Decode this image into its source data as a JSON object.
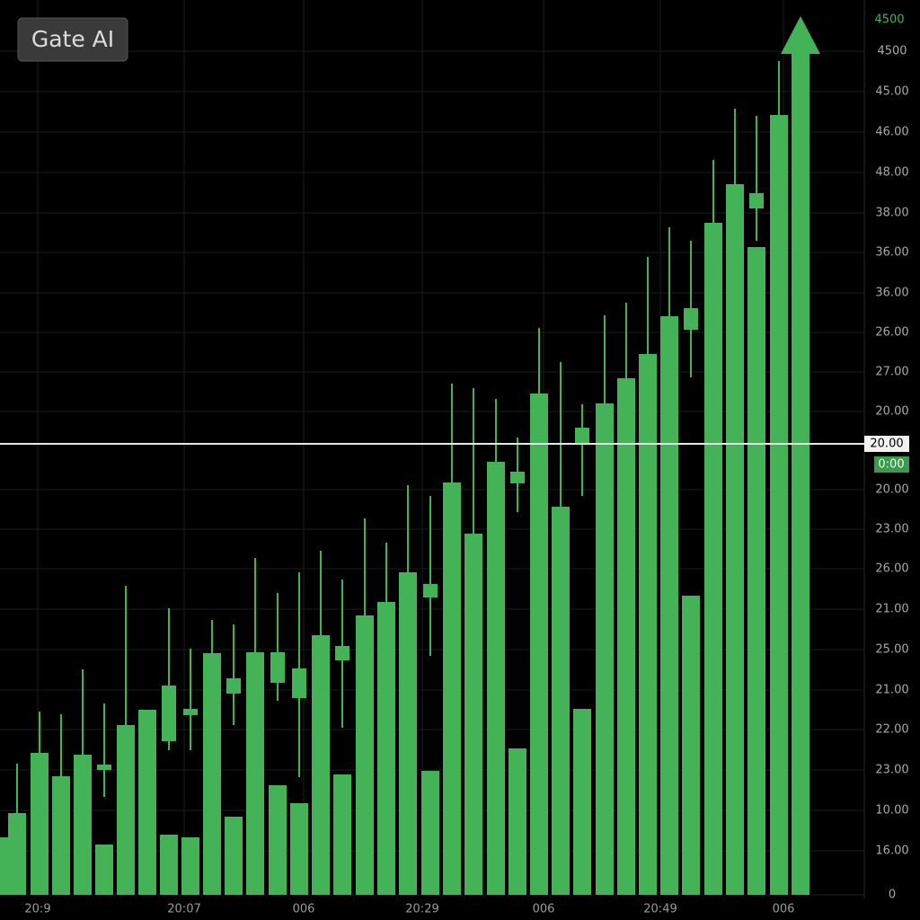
{
  "chart_data": {
    "type": "candlestick",
    "title": "Gate AI",
    "color": "#44b257",
    "xlim": [
      0,
      962
    ],
    "ylim": [
      0,
      996
    ],
    "grid": true,
    "candles": {
      "x": [
        0,
        19,
        44,
        68,
        92,
        116,
        116,
        140,
        164,
        188,
        188,
        212,
        212,
        236,
        260,
        260,
        284,
        309,
        309,
        333,
        333,
        357,
        381,
        381,
        406,
        430,
        454,
        479,
        479,
        503,
        527,
        552,
        576,
        576,
        600,
        624,
        648,
        648,
        673,
        697,
        721,
        745,
        769,
        769,
        794,
        818,
        842,
        842,
        867
      ],
      "open": [
        0,
        0,
        0,
        0,
        0,
        0,
        139,
        0,
        0,
        171,
        0,
        200,
        0,
        0,
        224,
        0,
        0,
        236,
        0,
        219,
        0,
        0,
        261,
        0,
        0,
        0,
        0,
        331,
        0,
        0,
        0,
        0,
        458,
        0,
        0,
        0,
        501,
        0,
        0,
        0,
        0,
        0,
        629,
        0,
        0,
        0,
        764,
        0,
        0
      ],
      "close": [
        64,
        91,
        158,
        132,
        156,
        56,
        145,
        189,
        206,
        233,
        67,
        207,
        64,
        269,
        241,
        87,
        270,
        270,
        122,
        252,
        102,
        289,
        277,
        134,
        311,
        326,
        359,
        346,
        138,
        459,
        402,
        482,
        471,
        163,
        558,
        432,
        520,
        207,
        547,
        575,
        602,
        644,
        653,
        333,
        748,
        791,
        781,
        721,
        868
      ],
      "high": [
        null,
        146,
        204,
        201,
        251,
        null,
        213,
        344,
        null,
        319,
        null,
        274,
        null,
        306,
        301,
        null,
        375,
        336,
        null,
        359,
        null,
        383,
        351,
        null,
        419,
        392,
        456,
        444,
        null,
        569,
        564,
        552,
        509,
        null,
        631,
        593,
        546,
        null,
        645,
        659,
        710,
        743,
        728,
        null,
        818,
        875,
        867,
        null,
        928
      ],
      "low": [
        null,
        null,
        null,
        null,
        null,
        null,
        109,
        null,
        null,
        161,
        null,
        161,
        null,
        null,
        189,
        null,
        null,
        216,
        null,
        131,
        null,
        null,
        186,
        null,
        null,
        null,
        null,
        266,
        null,
        null,
        null,
        null,
        426,
        null,
        null,
        null,
        444,
        null,
        null,
        null,
        null,
        null,
        576,
        null,
        null,
        null,
        728,
        null,
        null
      ]
    },
    "arrow": {
      "x": 891,
      "base": 0,
      "head_base": 936,
      "tip": 978
    },
    "yticks": [
      {
        "value": 939,
        "label": "4500"
      },
      {
        "value": 894,
        "label": "45.00"
      },
      {
        "value": 849,
        "label": "46.00"
      },
      {
        "value": 804,
        "label": "48.00"
      },
      {
        "value": 759,
        "label": "38.00"
      },
      {
        "value": 715,
        "label": "36.00"
      },
      {
        "value": 670,
        "label": "36.00"
      },
      {
        "value": 626,
        "label": "26.00"
      },
      {
        "value": 582,
        "label": "27.00"
      },
      {
        "value": 538,
        "label": "20.00"
      },
      {
        "value": 451,
        "label": "20.00"
      },
      {
        "value": 407,
        "label": "23.00"
      },
      {
        "value": 363,
        "label": "26.00"
      },
      {
        "value": 318,
        "label": "21.00"
      },
      {
        "value": 273,
        "label": "25.00"
      },
      {
        "value": 228,
        "label": "21.00"
      },
      {
        "value": 184,
        "label": "22.00"
      },
      {
        "value": 139,
        "label": "23.00"
      },
      {
        "value": 94,
        "label": "10.00"
      },
      {
        "value": 49,
        "label": "16.00"
      },
      0
    ],
    "xticks": [
      {
        "value": 42,
        "label": "20:9"
      },
      {
        "value": 205,
        "label": "20:07"
      },
      {
        "value": 338,
        "label": "006"
      },
      {
        "value": 470,
        "label": "20:29"
      },
      {
        "value": 605,
        "label": "006"
      },
      {
        "value": 735,
        "label": "20:49"
      },
      {
        "value": 872,
        "label": "006"
      }
    ],
    "max_badge": {
      "value": 974,
      "label": "4500"
    },
    "price_line": {
      "value": 502,
      "label": "20.00"
    },
    "price_badge": {
      "value": 479,
      "label": "0:00"
    }
  }
}
